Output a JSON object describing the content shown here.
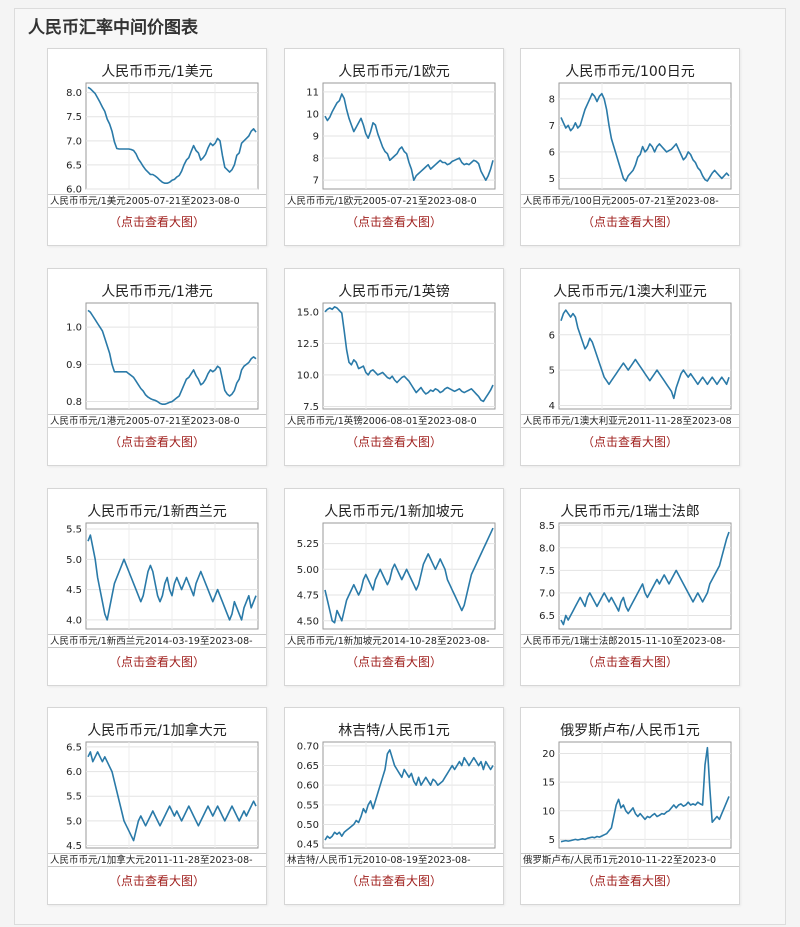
{
  "page": {
    "title": "人民币汇率中间价图表",
    "link_label": "（点击查看大图）"
  },
  "chart_data": [
    {
      "type": "line",
      "title": "人民币币元/1美元",
      "caption": "人民币币元/1美元2005-07-21至2023-08-0",
      "yticks": [
        "8.0",
        "7.5",
        "7.0",
        "6.5",
        "6.0"
      ],
      "ylim": [
        6.0,
        8.2
      ],
      "color": "#2a7aa8",
      "values": [
        8.11,
        8.08,
        8.03,
        7.98,
        7.89,
        7.8,
        7.7,
        7.61,
        7.45,
        7.35,
        7.2,
        6.98,
        6.84,
        6.83,
        6.83,
        6.83,
        6.83,
        6.83,
        6.82,
        6.8,
        6.73,
        6.62,
        6.55,
        6.47,
        6.4,
        6.35,
        6.3,
        6.3,
        6.27,
        6.23,
        6.18,
        6.14,
        6.12,
        6.12,
        6.14,
        6.18,
        6.2,
        6.25,
        6.28,
        6.37,
        6.5,
        6.6,
        6.65,
        6.78,
        6.9,
        6.8,
        6.75,
        6.6,
        6.65,
        6.72,
        6.85,
        6.95,
        6.9,
        6.95,
        7.05,
        7.0,
        6.7,
        6.45,
        6.4,
        6.35,
        6.4,
        6.5,
        6.7,
        6.75,
        6.95,
        7.0,
        7.05,
        7.1,
        7.2,
        7.25,
        7.18
      ]
    },
    {
      "type": "line",
      "title": "人民币币元/1欧元",
      "caption": "人民币币元/1欧元2005-07-21至2023-08-0",
      "yticks": [
        "11",
        "10",
        "9",
        "8",
        "7"
      ],
      "ylim": [
        6.6,
        11.4
      ],
      "color": "#2a7aa8",
      "values": [
        9.9,
        9.7,
        9.85,
        10.1,
        10.3,
        10.5,
        10.6,
        10.9,
        10.7,
        10.2,
        9.8,
        9.5,
        9.2,
        9.4,
        9.6,
        9.8,
        9.5,
        9.1,
        8.9,
        9.2,
        9.6,
        9.5,
        9.1,
        8.8,
        8.5,
        8.3,
        8.2,
        7.9,
        8.0,
        8.1,
        8.2,
        8.4,
        8.5,
        8.3,
        8.2,
        7.8,
        7.5,
        7.0,
        7.2,
        7.3,
        7.4,
        7.5,
        7.6,
        7.7,
        7.5,
        7.6,
        7.7,
        7.8,
        7.9,
        7.8,
        7.8,
        7.7,
        7.75,
        7.85,
        7.9,
        7.95,
        8.0,
        7.8,
        7.7,
        7.75,
        7.7,
        7.8,
        7.9,
        7.85,
        7.75,
        7.4,
        7.2,
        7.0,
        7.2,
        7.5,
        7.9
      ]
    },
    {
      "type": "line",
      "title": "人民币币元/100日元",
      "caption": "人民币币元/100日元2005-07-21至2023-08-",
      "yticks": [
        "8",
        "7",
        "6",
        "5"
      ],
      "ylim": [
        4.6,
        8.6
      ],
      "color": "#2a7aa8",
      "values": [
        7.3,
        7.1,
        6.9,
        7.0,
        6.8,
        6.9,
        7.1,
        6.9,
        7.0,
        7.3,
        7.6,
        7.8,
        8.0,
        8.2,
        8.1,
        7.9,
        8.1,
        8.2,
        8.0,
        7.6,
        7.0,
        6.5,
        6.2,
        5.9,
        5.6,
        5.3,
        5.0,
        4.9,
        5.1,
        5.2,
        5.3,
        5.5,
        5.8,
        5.9,
        6.2,
        6.0,
        6.1,
        6.3,
        6.2,
        6.0,
        6.2,
        6.3,
        6.2,
        6.1,
        6.0,
        6.05,
        6.1,
        6.2,
        6.3,
        6.1,
        5.9,
        5.7,
        5.8,
        6.0,
        5.9,
        5.7,
        5.6,
        5.4,
        5.3,
        5.1,
        4.95,
        4.9,
        5.05,
        5.2,
        5.3,
        5.2,
        5.1,
        5.0,
        5.1,
        5.2,
        5.1
      ]
    },
    {
      "type": "line",
      "title": "人民币币元/1港元",
      "caption": "人民币币元/1港元2005-07-21至2023-08-0",
      "yticks": [
        "1.0",
        "0.9",
        "0.8"
      ],
      "ylim": [
        0.78,
        1.065
      ],
      "color": "#2a7aa8",
      "values": [
        1.045,
        1.04,
        1.03,
        1.02,
        1.01,
        1.0,
        0.99,
        0.97,
        0.95,
        0.93,
        0.9,
        0.88,
        0.88,
        0.88,
        0.88,
        0.88,
        0.88,
        0.875,
        0.87,
        0.865,
        0.855,
        0.845,
        0.835,
        0.828,
        0.818,
        0.812,
        0.808,
        0.805,
        0.803,
        0.8,
        0.795,
        0.793,
        0.793,
        0.795,
        0.798,
        0.8,
        0.805,
        0.81,
        0.815,
        0.83,
        0.845,
        0.86,
        0.865,
        0.875,
        0.885,
        0.87,
        0.86,
        0.845,
        0.85,
        0.86,
        0.875,
        0.885,
        0.88,
        0.885,
        0.895,
        0.89,
        0.86,
        0.83,
        0.82,
        0.815,
        0.82,
        0.83,
        0.85,
        0.86,
        0.885,
        0.895,
        0.9,
        0.905,
        0.915,
        0.92,
        0.915
      ]
    },
    {
      "type": "line",
      "title": "人民币币元/1英镑",
      "caption": "人民币币元/1英镑2006-08-01至2023-08-0",
      "yticks": [
        "15.0",
        "12.5",
        "10.0",
        "7.5"
      ],
      "ylim": [
        7.3,
        15.7
      ],
      "color": "#2a7aa8",
      "values": [
        15.0,
        15.2,
        15.3,
        15.2,
        15.4,
        15.3,
        15.1,
        14.9,
        13.5,
        12.0,
        11.0,
        10.8,
        11.2,
        11.0,
        10.5,
        10.6,
        10.7,
        10.2,
        10.0,
        10.3,
        10.4,
        10.2,
        10.0,
        10.1,
        10.2,
        10.0,
        9.8,
        9.7,
        9.9,
        9.6,
        9.4,
        9.6,
        9.8,
        9.9,
        9.7,
        9.5,
        9.2,
        8.9,
        8.6,
        8.8,
        9.0,
        8.7,
        8.5,
        8.6,
        8.8,
        8.7,
        8.9,
        8.8,
        8.6,
        8.7,
        8.9,
        9.0,
        8.9,
        8.8,
        8.7,
        8.8,
        8.9,
        8.7,
        8.6,
        8.7,
        8.8,
        8.9,
        8.7,
        8.5,
        8.3,
        8.0,
        7.9,
        8.2,
        8.5,
        8.8,
        9.2
      ]
    },
    {
      "type": "line",
      "title": "人民币币元/1澳大利亚元",
      "caption": "人民币币元/1澳大利亚元2011-11-28至2023-08",
      "yticks": [
        "6",
        "5",
        "4"
      ],
      "ylim": [
        3.9,
        6.9
      ],
      "color": "#2a7aa8",
      "values": [
        6.4,
        6.6,
        6.7,
        6.6,
        6.5,
        6.6,
        6.5,
        6.2,
        6.0,
        5.8,
        5.6,
        5.7,
        5.9,
        5.8,
        5.6,
        5.4,
        5.2,
        5.0,
        4.8,
        4.7,
        4.6,
        4.7,
        4.8,
        4.9,
        5.0,
        5.1,
        5.2,
        5.1,
        5.0,
        5.1,
        5.2,
        5.3,
        5.2,
        5.1,
        5.0,
        4.9,
        4.8,
        4.7,
        4.8,
        4.9,
        5.0,
        4.9,
        4.8,
        4.7,
        4.6,
        4.5,
        4.4,
        4.2,
        4.5,
        4.7,
        4.9,
        5.0,
        4.9,
        4.8,
        4.9,
        4.8,
        4.7,
        4.6,
        4.7,
        4.8,
        4.7,
        4.6,
        4.7,
        4.8,
        4.7,
        4.6,
        4.7,
        4.8,
        4.7,
        4.6,
        4.8
      ]
    },
    {
      "type": "line",
      "title": "人民币币元/1新西兰元",
      "caption": "人民币币元/1新西兰元2014-03-19至2023-08-",
      "yticks": [
        "5.5",
        "5.0",
        "4.5",
        "4.0"
      ],
      "ylim": [
        3.85,
        5.6
      ],
      "color": "#2a7aa8",
      "values": [
        5.3,
        5.4,
        5.2,
        5.0,
        4.7,
        4.5,
        4.3,
        4.1,
        4.0,
        4.2,
        4.4,
        4.6,
        4.7,
        4.8,
        4.9,
        5.0,
        4.9,
        4.8,
        4.7,
        4.6,
        4.5,
        4.4,
        4.3,
        4.4,
        4.6,
        4.8,
        4.9,
        4.8,
        4.6,
        4.4,
        4.3,
        4.4,
        4.6,
        4.7,
        4.5,
        4.4,
        4.6,
        4.7,
        4.6,
        4.5,
        4.6,
        4.7,
        4.6,
        4.5,
        4.4,
        4.6,
        4.7,
        4.8,
        4.7,
        4.6,
        4.5,
        4.4,
        4.3,
        4.4,
        4.5,
        4.4,
        4.3,
        4.2,
        4.1,
        4.0,
        4.1,
        4.3,
        4.2,
        4.1,
        4.0,
        4.2,
        4.3,
        4.4,
        4.2,
        4.3,
        4.4
      ]
    },
    {
      "type": "line",
      "title": "人民币币元/1新加坡元",
      "caption": "人民币币元/1新加坡元2014-10-28至2023-08-",
      "yticks": [
        "5.25",
        "5.00",
        "4.75",
        "4.50"
      ],
      "ylim": [
        4.42,
        5.45
      ],
      "color": "#2a7aa8",
      "values": [
        4.8,
        4.7,
        4.6,
        4.5,
        4.48,
        4.6,
        4.55,
        4.5,
        4.6,
        4.7,
        4.75,
        4.8,
        4.85,
        4.8,
        4.75,
        4.8,
        4.9,
        4.95,
        4.9,
        4.85,
        4.8,
        4.9,
        4.95,
        5.0,
        4.95,
        4.9,
        4.85,
        4.9,
        5.0,
        5.05,
        5.0,
        4.95,
        4.9,
        4.95,
        5.0,
        4.95,
        4.9,
        4.85,
        4.8,
        4.85,
        4.95,
        5.05,
        5.1,
        5.15,
        5.1,
        5.05,
        5.0,
        5.05,
        5.1,
        5.05,
        5.0,
        4.9,
        4.85,
        4.8,
        4.75,
        4.7,
        4.65,
        4.6,
        4.65,
        4.75,
        4.85,
        4.95,
        5.0,
        5.05,
        5.1,
        5.15,
        5.2,
        5.25,
        5.3,
        5.35,
        5.4
      ]
    },
    {
      "type": "line",
      "title": "人民币币元/1瑞士法郎",
      "caption": "人民币币元/1瑞士法郎2015-11-10至2023-08-",
      "yticks": [
        "8.5",
        "8.0",
        "7.5",
        "7.0",
        "6.5"
      ],
      "ylim": [
        6.2,
        8.55
      ],
      "color": "#2a7aa8",
      "values": [
        6.4,
        6.3,
        6.5,
        6.4,
        6.5,
        6.6,
        6.7,
        6.8,
        6.9,
        6.8,
        6.7,
        6.9,
        7.0,
        6.9,
        6.8,
        6.7,
        6.8,
        6.9,
        7.0,
        6.9,
        6.8,
        6.9,
        6.8,
        6.7,
        6.6,
        6.8,
        6.9,
        6.7,
        6.6,
        6.7,
        6.8,
        6.9,
        7.0,
        7.1,
        7.2,
        7.0,
        6.9,
        7.0,
        7.1,
        7.2,
        7.3,
        7.2,
        7.3,
        7.4,
        7.3,
        7.2,
        7.3,
        7.4,
        7.5,
        7.4,
        7.3,
        7.2,
        7.1,
        7.0,
        6.9,
        6.8,
        6.9,
        7.0,
        6.9,
        6.8,
        6.9,
        7.0,
        7.2,
        7.3,
        7.4,
        7.5,
        7.6,
        7.8,
        8.0,
        8.2,
        8.35
      ]
    },
    {
      "type": "line",
      "title": "人民币币元/1加拿大元",
      "caption": "人民币币元/1加拿大元2011-11-28至2023-08-",
      "yticks": [
        "6.5",
        "6.0",
        "5.5",
        "5.0",
        "4.5"
      ],
      "ylim": [
        4.45,
        6.6
      ],
      "color": "#2a7aa8",
      "values": [
        6.3,
        6.4,
        6.2,
        6.3,
        6.4,
        6.3,
        6.2,
        6.3,
        6.2,
        6.1,
        6.0,
        5.8,
        5.6,
        5.4,
        5.2,
        5.0,
        4.9,
        4.8,
        4.7,
        4.6,
        4.8,
        5.0,
        5.1,
        5.0,
        4.9,
        5.0,
        5.1,
        5.2,
        5.1,
        5.0,
        4.9,
        5.0,
        5.1,
        5.2,
        5.3,
        5.2,
        5.1,
        5.2,
        5.1,
        5.0,
        5.1,
        5.2,
        5.3,
        5.2,
        5.1,
        5.0,
        4.9,
        5.0,
        5.1,
        5.2,
        5.3,
        5.2,
        5.1,
        5.2,
        5.3,
        5.2,
        5.1,
        5.0,
        5.1,
        5.2,
        5.3,
        5.2,
        5.1,
        5.0,
        5.1,
        5.2,
        5.1,
        5.2,
        5.3,
        5.4,
        5.3
      ]
    },
    {
      "type": "line",
      "title": "林吉特/人民币1元",
      "caption": "林吉特/人民币1元2010-08-19至2023-08-",
      "yticks": [
        "0.70",
        "0.65",
        "0.60",
        "0.55",
        "0.50",
        "0.45"
      ],
      "ylim": [
        0.44,
        0.71
      ],
      "color": "#2a7aa8",
      "values": [
        0.46,
        0.47,
        0.465,
        0.47,
        0.48,
        0.475,
        0.48,
        0.47,
        0.48,
        0.485,
        0.49,
        0.495,
        0.5,
        0.51,
        0.505,
        0.52,
        0.54,
        0.53,
        0.55,
        0.56,
        0.54,
        0.56,
        0.58,
        0.6,
        0.62,
        0.64,
        0.68,
        0.69,
        0.67,
        0.65,
        0.64,
        0.63,
        0.62,
        0.64,
        0.63,
        0.62,
        0.63,
        0.61,
        0.6,
        0.62,
        0.6,
        0.61,
        0.62,
        0.61,
        0.6,
        0.615,
        0.61,
        0.6,
        0.605,
        0.61,
        0.62,
        0.63,
        0.64,
        0.65,
        0.64,
        0.65,
        0.66,
        0.65,
        0.67,
        0.66,
        0.65,
        0.66,
        0.67,
        0.66,
        0.65,
        0.66,
        0.64,
        0.66,
        0.65,
        0.64,
        0.65
      ]
    },
    {
      "type": "line",
      "title": "俄罗斯卢布/人民币1元",
      "caption": "俄罗斯卢布/人民币1元2010-11-22至2023-0",
      "yticks": [
        "20",
        "15",
        "10",
        "5"
      ],
      "ylim": [
        3.5,
        22
      ],
      "color": "#2a7aa8",
      "values": [
        4.6,
        4.7,
        4.8,
        4.7,
        4.8,
        4.9,
        5.0,
        4.9,
        5.0,
        5.1,
        5.0,
        5.2,
        5.3,
        5.4,
        5.3,
        5.5,
        5.4,
        5.6,
        5.8,
        6.0,
        6.5,
        7.0,
        9.0,
        11.0,
        12.0,
        10.5,
        11.0,
        10.0,
        9.5,
        10.0,
        10.5,
        9.5,
        9.0,
        9.5,
        9.0,
        8.5,
        9.0,
        8.8,
        9.2,
        9.5,
        9.0,
        9.2,
        9.5,
        9.4,
        9.8,
        10.0,
        10.5,
        11.0,
        10.5,
        11.0,
        11.2,
        10.8,
        11.0,
        11.5,
        11.0,
        11.2,
        11.0,
        11.5,
        11.2,
        11.0,
        18.0,
        21.0,
        14.0,
        8.0,
        8.5,
        9.0,
        8.5,
        9.5,
        10.5,
        11.5,
        12.5
      ]
    }
  ]
}
